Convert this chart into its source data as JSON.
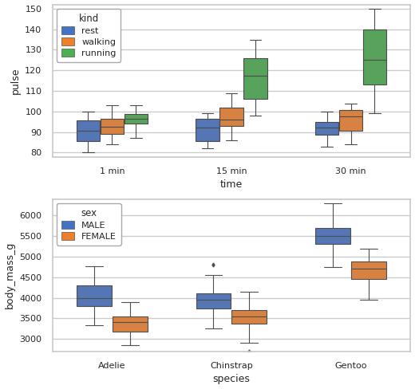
{
  "top_chart": {
    "xlabel": "time",
    "ylabel": "pulse",
    "ylim": [
      78,
      152
    ],
    "yticks": [
      80,
      90,
      100,
      110,
      120,
      130,
      140,
      150
    ],
    "legend_title": "kind",
    "legend_labels": [
      "rest",
      "walking",
      "running"
    ],
    "colors": [
      "#4472c4",
      "#f07f29",
      "#4caf50"
    ]
  },
  "bottom_chart": {
    "xlabel": "species",
    "ylabel": "body_mass_g",
    "ylim": [
      2700,
      6400
    ],
    "yticks": [
      3000,
      3500,
      4000,
      4500,
      5000,
      5500,
      6000
    ],
    "legend_title": "sex",
    "legend_labels": [
      "MALE",
      "FEMALE"
    ],
    "colors": [
      "#4472c4",
      "#f07f29"
    ]
  },
  "fig_width": 5.2,
  "fig_height": 4.88,
  "dpi": 100
}
